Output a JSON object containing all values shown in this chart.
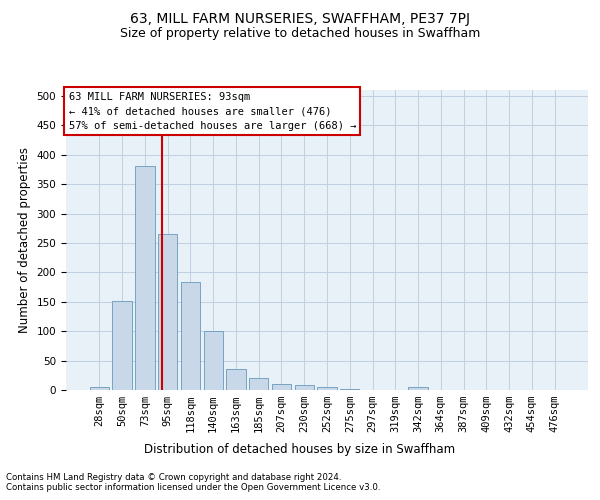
{
  "title": "63, MILL FARM NURSERIES, SWAFFHAM, PE37 7PJ",
  "subtitle": "Size of property relative to detached houses in Swaffham",
  "xlabel": "Distribution of detached houses by size in Swaffham",
  "ylabel": "Number of detached properties",
  "footnote1": "Contains HM Land Registry data © Crown copyright and database right 2024.",
  "footnote2": "Contains public sector information licensed under the Open Government Licence v3.0.",
  "bar_labels": [
    "28sqm",
    "50sqm",
    "73sqm",
    "95sqm",
    "118sqm",
    "140sqm",
    "163sqm",
    "185sqm",
    "207sqm",
    "230sqm",
    "252sqm",
    "275sqm",
    "297sqm",
    "319sqm",
    "342sqm",
    "364sqm",
    "387sqm",
    "409sqm",
    "432sqm",
    "454sqm",
    "476sqm"
  ],
  "bar_values": [
    5,
    152,
    380,
    265,
    183,
    100,
    35,
    20,
    10,
    8,
    5,
    2,
    0,
    0,
    5,
    0,
    0,
    0,
    0,
    0,
    0
  ],
  "bar_color": "#c8d8e8",
  "bar_edge_color": "#6699bb",
  "property_line_x": 2.75,
  "property_line_color": "#cc0000",
  "annotation_text": "63 MILL FARM NURSERIES: 93sqm\n← 41% of detached houses are smaller (476)\n57% of semi-detached houses are larger (668) →",
  "annotation_box_color": "#ffffff",
  "annotation_box_edge_color": "#cc0000",
  "ylim": [
    0,
    510
  ],
  "yticks": [
    0,
    50,
    100,
    150,
    200,
    250,
    300,
    350,
    400,
    450,
    500
  ],
  "grid_color": "#c0d0e0",
  "bg_color": "#e8f0f8",
  "title_fontsize": 10,
  "subtitle_fontsize": 9,
  "xlabel_fontsize": 8.5,
  "ylabel_fontsize": 8.5,
  "tick_fontsize": 7.5,
  "annotation_fontsize": 7.5
}
